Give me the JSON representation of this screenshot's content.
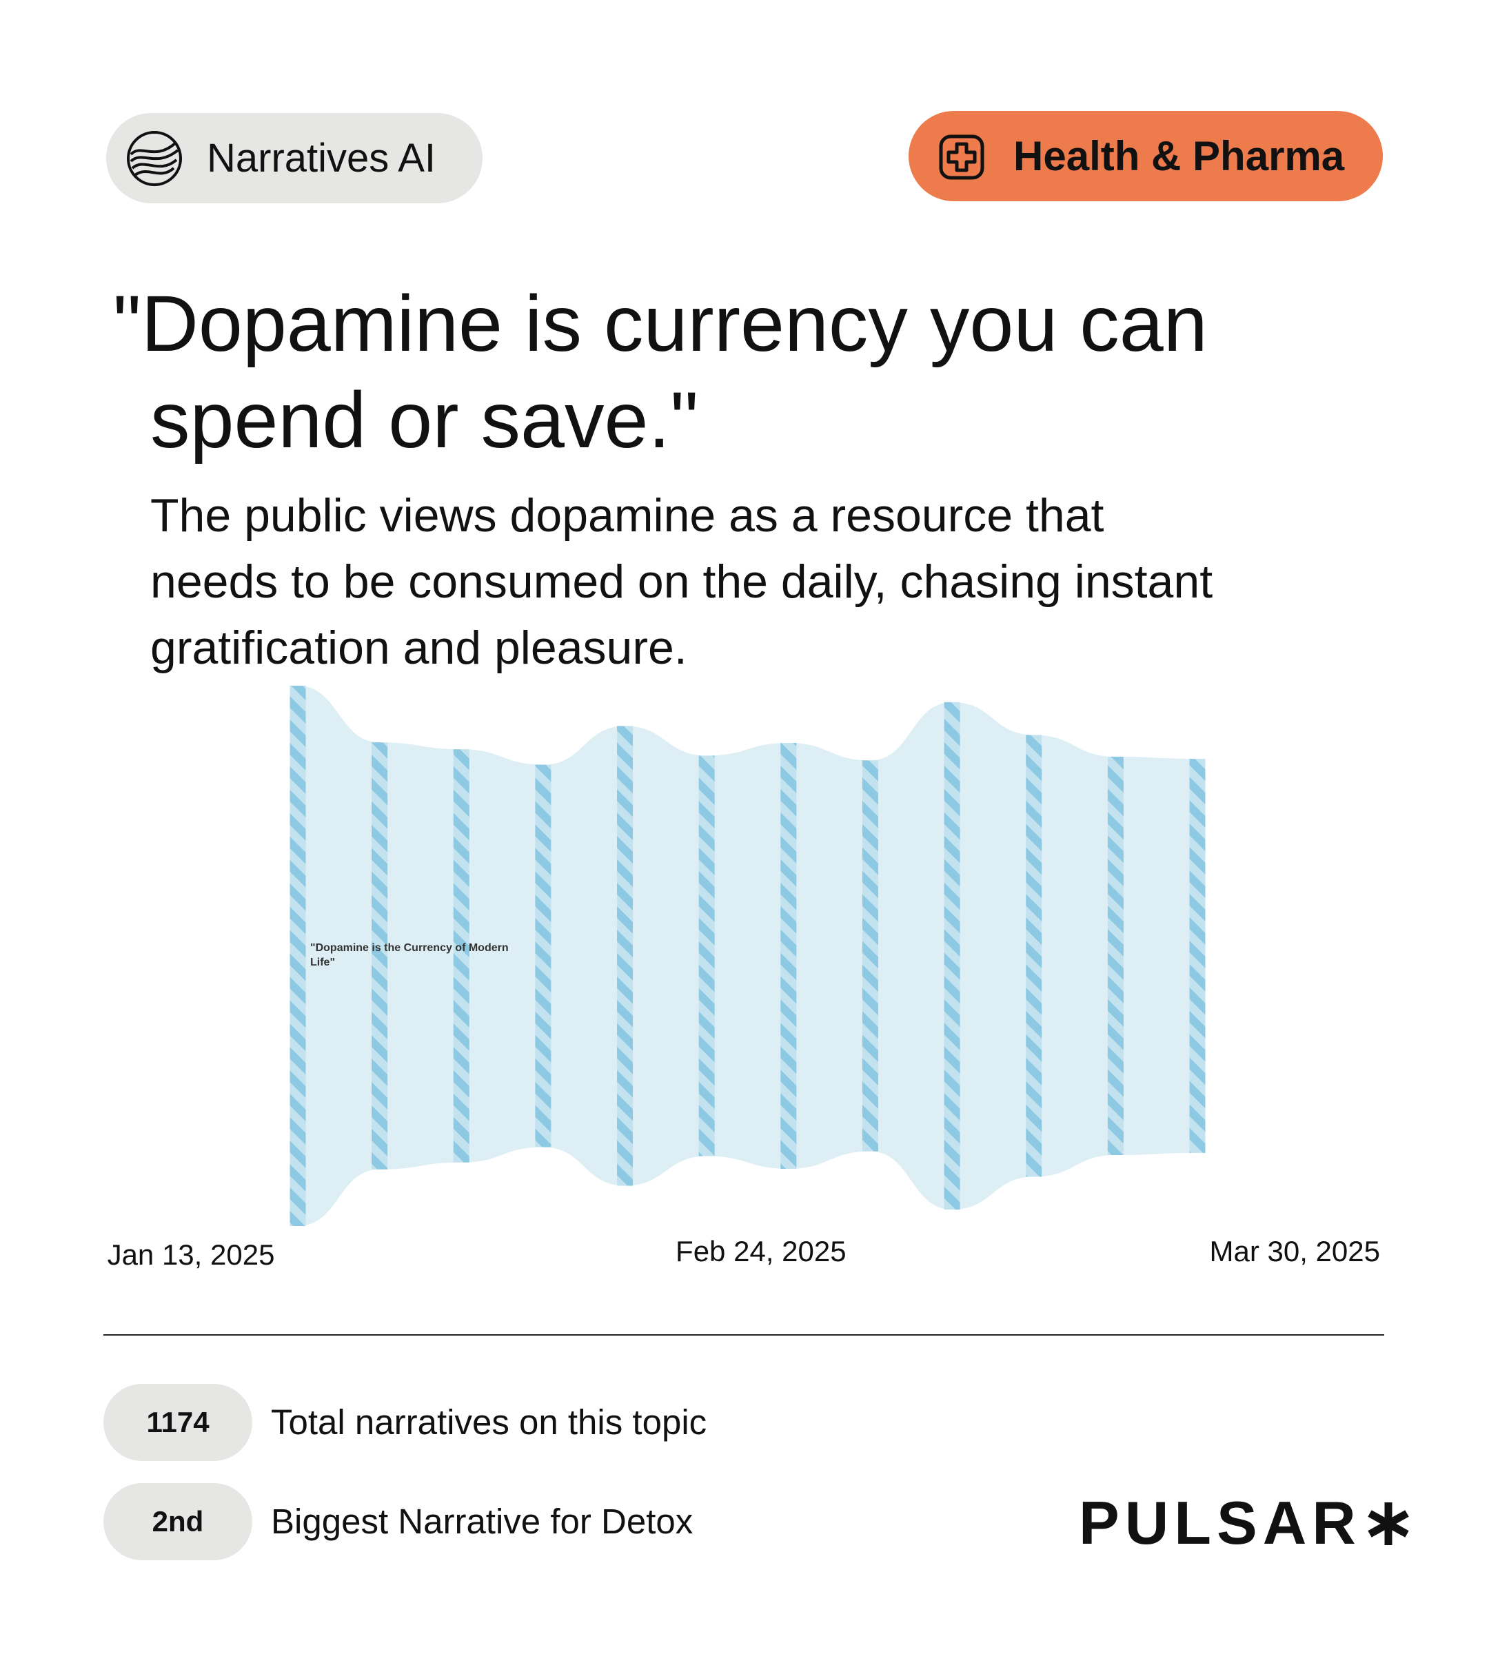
{
  "badge": "Narratives AI",
  "category_badge": "Health & Pharma",
  "headline": "\"Dopamine is currency you can spend or save.\"",
  "description": "The public views dopamine as a resource that needs to be consumed on the daily, chasing instant gratification and pleasure.",
  "chart_data": {
    "type": "stream",
    "categories": [
      "Jan 13, 2025",
      null,
      null,
      null,
      null,
      null,
      "Feb 24, 2025",
      null,
      null,
      null,
      null,
      "Mar 30, 2025"
    ],
    "values": [
      510,
      403,
      390,
      361,
      434,
      378,
      402,
      369,
      479,
      417,
      376,
      372
    ],
    "color": "#8ec9e3",
    "annotation": "\"Dopamine is the Currency of Modern Life\""
  },
  "stats": [
    {
      "value": "1174",
      "label": "Total narratives on this topic"
    },
    {
      "value": "2nd",
      "label": "Biggest Narrative for Detox"
    }
  ],
  "brand": "PULSAR"
}
